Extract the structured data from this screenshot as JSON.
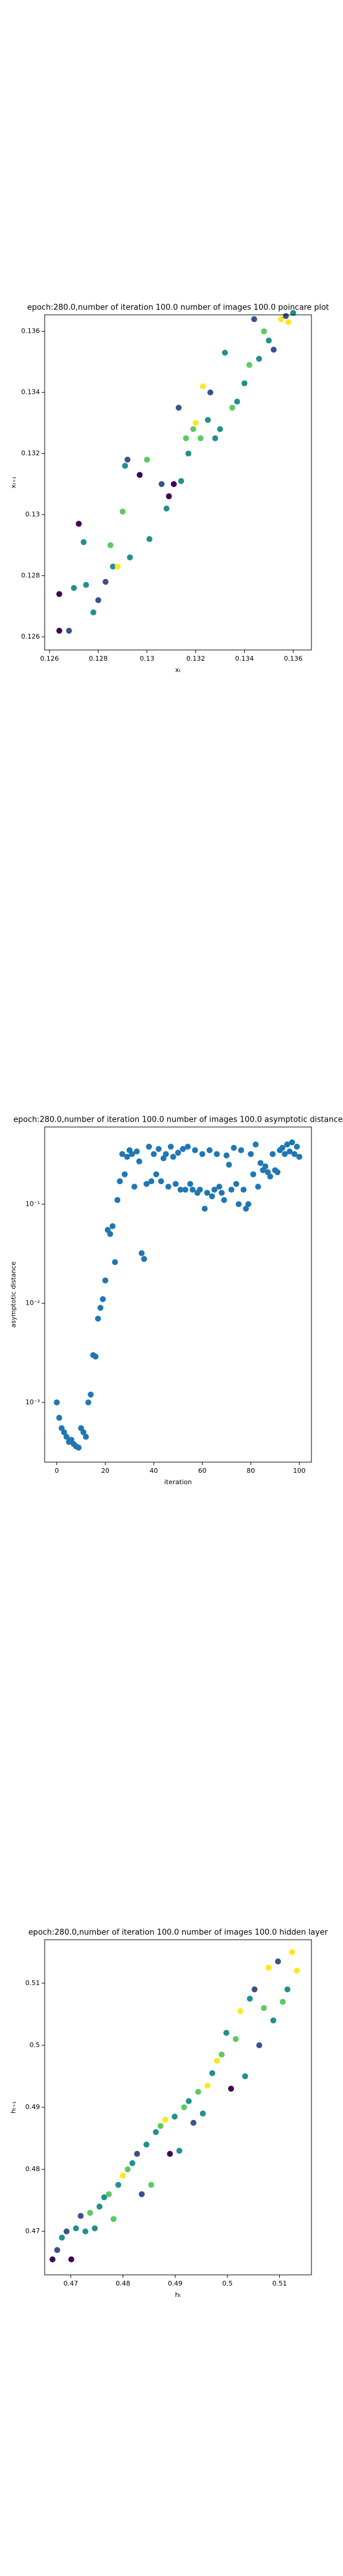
{
  "chart_data": [
    {
      "type": "scatter",
      "title": "epoch:280.0,number of iteration 100.0 number of images 100.0 poincare plot",
      "xlabel": "xₜ",
      "ylabel": "xₜ₊₁",
      "xlim": [
        0.1258,
        0.13675
      ],
      "ylim": [
        0.12557,
        0.13654
      ],
      "xticks": [
        0.126,
        0.128,
        0.13,
        0.132,
        0.134,
        0.136
      ],
      "yticks": [
        0.126,
        0.128,
        0.13,
        0.132,
        0.134,
        0.136
      ],
      "x": [
        0.1264,
        0.1264,
        0.1268,
        0.127,
        0.1272,
        0.1274,
        0.1275,
        0.1278,
        0.128,
        0.1283,
        0.1285,
        0.1286,
        0.1288,
        0.129,
        0.1291,
        0.1292,
        0.1293,
        0.1297,
        0.13,
        0.1301,
        0.1306,
        0.1308,
        0.1309,
        0.1311,
        0.1313,
        0.1314,
        0.1316,
        0.1317,
        0.1319,
        0.132,
        0.1322,
        0.1323,
        0.1325,
        0.1326,
        0.1328,
        0.133,
        0.1332,
        0.1335,
        0.1337,
        0.134,
        0.1342,
        0.1344,
        0.1346,
        0.1348,
        0.135,
        0.1352,
        0.1355,
        0.1357,
        0.1358,
        0.136
      ],
      "y": [
        0.1262,
        0.1274,
        0.1262,
        0.1276,
        0.1297,
        0.1291,
        0.1277,
        0.1268,
        0.1272,
        0.1278,
        0.129,
        0.1283,
        0.1283,
        0.1301,
        0.1316,
        0.1318,
        0.1286,
        0.1313,
        0.1318,
        0.1292,
        0.131,
        0.1302,
        0.1306,
        0.131,
        0.1335,
        0.1311,
        0.1325,
        0.132,
        0.1328,
        0.133,
        0.1325,
        0.1342,
        0.1331,
        0.134,
        0.1325,
        0.1328,
        0.1353,
        0.1335,
        0.1337,
        0.1343,
        0.1349,
        0.1364,
        0.1351,
        0.136,
        0.1357,
        0.1354,
        0.1364,
        0.1365,
        0.1363,
        0.1366
      ],
      "colors": [
        "#440154",
        "#440154",
        "#3b528b",
        "#21918c",
        "#440154",
        "#21918c",
        "#21918c",
        "#21918c",
        "#3b528b",
        "#3b528b",
        "#5ec962",
        "#21918c",
        "#fde725",
        "#5ec962",
        "#21918c",
        "#3b528b",
        "#21918c",
        "#440154",
        "#5ec962",
        "#21918c",
        "#3b528b",
        "#21918c",
        "#440154",
        "#440154",
        "#3b528b",
        "#21918c",
        "#5ec962",
        "#21918c",
        "#5ec962",
        "#fde725",
        "#5ec962",
        "#fde725",
        "#21918c",
        "#3b528b",
        "#21918c",
        "#21918c",
        "#21918c",
        "#5ec962",
        "#21918c",
        "#21918c",
        "#5ec962",
        "#3b528b",
        "#21918c",
        "#5ec962",
        "#21918c",
        "#3b528b",
        "#fde725",
        "#3b528b",
        "#fde725",
        "#21918c"
      ]
    },
    {
      "type": "scatter",
      "title": "epoch:280.0,number of iteration 100.0  number of images 100.0 asymptotic distance",
      "xlabel": "iteration",
      "ylabel": "asymptotic distance",
      "yscale": "log",
      "color": "#1f77b4",
      "xlim": [
        -5,
        105
      ],
      "ylim": [
        0.00025,
        0.6
      ],
      "xticks": [
        0,
        20,
        40,
        60,
        80,
        100
      ],
      "yticks": [
        {
          "value": 0.001,
          "label": "10⁻³"
        },
        {
          "value": 0.01,
          "label": "10⁻²"
        },
        {
          "value": 0.1,
          "label": "10⁻¹"
        }
      ],
      "x": [
        0,
        1,
        2,
        3,
        4,
        5,
        6,
        7,
        8,
        9,
        10,
        11,
        12,
        13,
        14,
        15,
        16,
        17,
        18,
        19,
        20,
        21,
        22,
        23,
        24,
        25,
        26,
        27,
        28,
        29,
        30,
        31,
        32,
        33,
        34,
        35,
        36,
        37,
        38,
        39,
        40,
        41,
        42,
        43,
        44,
        45,
        46,
        47,
        48,
        49,
        50,
        51,
        52,
        53,
        54,
        55,
        56,
        57,
        58,
        59,
        60,
        61,
        62,
        63,
        64,
        65,
        66,
        67,
        68,
        69,
        70,
        71,
        72,
        73,
        74,
        75,
        76,
        77,
        78,
        79,
        80,
        81,
        82,
        83,
        84,
        85,
        86,
        87,
        88,
        89,
        90,
        91,
        92,
        93,
        94,
        95,
        96,
        97,
        98,
        99,
        100
      ],
      "y": [
        0.001,
        0.0007,
        0.00055,
        0.0005,
        0.00045,
        0.0004,
        0.00042,
        0.00038,
        0.00036,
        0.00035,
        0.00055,
        0.0005,
        0.00045,
        0.001,
        0.0012,
        0.003,
        0.0029,
        0.007,
        0.009,
        0.011,
        0.017,
        0.055,
        0.05,
        0.06,
        0.026,
        0.11,
        0.17,
        0.32,
        0.2,
        0.3,
        0.35,
        0.32,
        0.15,
        0.34,
        0.27,
        0.032,
        0.028,
        0.16,
        0.38,
        0.17,
        0.32,
        0.2,
        0.36,
        0.17,
        0.29,
        0.32,
        0.15,
        0.38,
        0.3,
        0.16,
        0.33,
        0.14,
        0.36,
        0.14,
        0.38,
        0.16,
        0.14,
        0.35,
        0.13,
        0.14,
        0.32,
        0.09,
        0.13,
        0.35,
        0.12,
        0.14,
        0.32,
        0.15,
        0.13,
        0.11,
        0.31,
        0.25,
        0.14,
        0.37,
        0.16,
        0.1,
        0.35,
        0.14,
        0.09,
        0.1,
        0.32,
        0.2,
        0.4,
        0.15,
        0.26,
        0.22,
        0.24,
        0.21,
        0.19,
        0.32,
        0.22,
        0.21,
        0.35,
        0.37,
        0.32,
        0.4,
        0.34,
        0.42,
        0.32,
        0.38,
        0.3
      ]
    },
    {
      "type": "scatter",
      "title": "epoch:280.0,number of iteration 100.0  number of images 100.0 hidden layer",
      "xlabel": "hₜ",
      "ylabel": "hₜ₊₁",
      "xlim": [
        0.465,
        0.5161
      ],
      "ylim": [
        0.463,
        0.517
      ],
      "xticks": [
        0.47,
        0.48,
        0.49,
        0.5,
        0.51
      ],
      "yticks": [
        0.47,
        0.48,
        0.49,
        0.5,
        0.51
      ],
      "x": [
        0.4665,
        0.4674,
        0.4683,
        0.4692,
        0.4701,
        0.471,
        0.4719,
        0.4728,
        0.4737,
        0.4746,
        0.4755,
        0.4764,
        0.4773,
        0.4782,
        0.4791,
        0.48,
        0.4809,
        0.4818,
        0.4827,
        0.4836,
        0.4845,
        0.4854,
        0.4863,
        0.4872,
        0.4881,
        0.489,
        0.4899,
        0.4908,
        0.4917,
        0.4926,
        0.4935,
        0.4944,
        0.4953,
        0.4962,
        0.4971,
        0.498,
        0.4989,
        0.4998,
        0.5007,
        0.5016,
        0.5025,
        0.5034,
        0.5043,
        0.5052,
        0.5061,
        0.507,
        0.5079,
        0.5088,
        0.5097,
        0.5106,
        0.5115,
        0.5124,
        0.5133
      ],
      "y": [
        0.4655,
        0.467,
        0.469,
        0.47,
        0.4655,
        0.4705,
        0.4725,
        0.47,
        0.473,
        0.4705,
        0.474,
        0.4755,
        0.476,
        0.472,
        0.4775,
        0.479,
        0.48,
        0.481,
        0.4825,
        0.476,
        0.484,
        0.4775,
        0.486,
        0.487,
        0.488,
        0.4825,
        0.4885,
        0.483,
        0.49,
        0.491,
        0.4875,
        0.4925,
        0.489,
        0.4935,
        0.4955,
        0.4975,
        0.4985,
        0.502,
        0.493,
        0.501,
        0.5055,
        0.495,
        0.5075,
        0.509,
        0.5,
        0.506,
        0.5125,
        0.504,
        0.5135,
        0.507,
        0.509,
        0.515,
        0.512
      ],
      "colors": [
        "#440154",
        "#3b528b",
        "#21918c",
        "#3b528b",
        "#440154",
        "#21918c",
        "#3b528b",
        "#21918c",
        "#5ec962",
        "#21918c",
        "#21918c",
        "#21918c",
        "#5ec962",
        "#5ec962",
        "#21918c",
        "#fde725",
        "#5ec962",
        "#21918c",
        "#3b528b",
        "#3b528b",
        "#21918c",
        "#5ec962",
        "#21918c",
        "#5ec962",
        "#fde725",
        "#440154",
        "#21918c",
        "#21918c",
        "#5ec962",
        "#21918c",
        "#3b528b",
        "#5ec962",
        "#21918c",
        "#fde725",
        "#21918c",
        "#fde725",
        "#5ec962",
        "#21918c",
        "#440154",
        "#5ec962",
        "#fde725",
        "#21918c",
        "#21918c",
        "#3b528b",
        "#3b528b",
        "#5ec962",
        "#fde725",
        "#21918c",
        "#3b528b",
        "#5ec962",
        "#21918c",
        "#fde725",
        "#fde725"
      ]
    }
  ]
}
